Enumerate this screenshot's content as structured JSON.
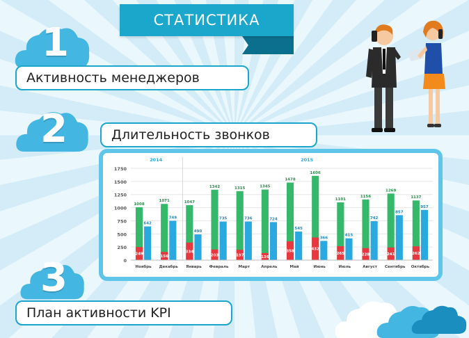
{
  "header": {
    "title": "СТАТИСТИКА"
  },
  "sections": [
    {
      "number": "1",
      "label": "Активность менеджеров"
    },
    {
      "number": "2",
      "label": "Длительность звонков"
    },
    {
      "number": "3",
      "label": "План активности KPI"
    }
  ],
  "colors": {
    "accent": "#1ba6cc",
    "green": "#36b86a",
    "blue": "#2aa8e0",
    "red": "#e8373f"
  },
  "chart_data": {
    "type": "bar",
    "year_labels": [
      "2014",
      "2015"
    ],
    "categories": [
      "Ноябрь",
      "Декабрь",
      "Январь",
      "Февраль",
      "Март",
      "Апрель",
      "Май",
      "Июнь",
      "Июль",
      "Август",
      "Сентябрь",
      "Октябрь"
    ],
    "series": [
      {
        "color": "#36b86a",
        "values": [
          1008,
          1071,
          1047,
          1342,
          1315,
          1345,
          1478,
          1606,
          1101,
          1156,
          1269,
          1137
        ]
      },
      {
        "color": "#2aa8e0",
        "values": [
          642,
          749,
          490,
          735,
          736,
          724,
          545,
          366,
          415,
          742,
          857,
          957
        ]
      },
      {
        "color": "#e8373f",
        "values": [
          249,
          156,
          334,
          203,
          197,
          136,
          358,
          432,
          265,
          228,
          241,
          262
        ]
      }
    ],
    "y_ticks": [
      0,
      250,
      500,
      750,
      1000,
      1250,
      1500,
      1750
    ],
    "ylim": [
      0,
      1750
    ]
  }
}
